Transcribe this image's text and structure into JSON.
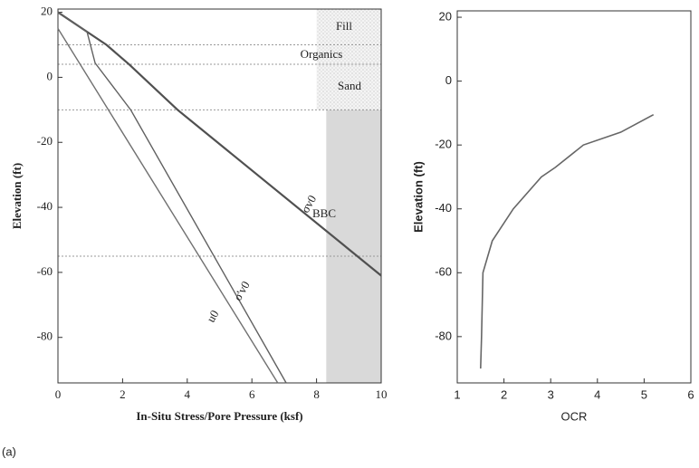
{
  "chart_data": [
    {
      "type": "line",
      "xlabel": "In-Situ Stress/Pore Pressure (ksf)",
      "ylabel": "Elevation (ft)",
      "xlim": [
        0,
        10
      ],
      "ylim": [
        -94,
        21
      ],
      "xticks": [
        0,
        2,
        4,
        6,
        8,
        10
      ],
      "yticks": [
        20,
        0,
        -20,
        -40,
        -60,
        -80
      ],
      "series": [
        {
          "name": "σv0",
          "color": "#505050",
          "x": [
            0,
            0.9,
            1.5,
            2.2,
            3.7,
            10
          ],
          "values": [
            20,
            14,
            10,
            4,
            -10,
            -61
          ]
        },
        {
          "name": "σ'v0",
          "color": "#606060",
          "x": [
            0,
            0.9,
            1.15,
            2.25,
            7.06
          ],
          "values": [
            20,
            14,
            4.4,
            -10,
            -94
          ]
        },
        {
          "name": "u0",
          "color": "#707070",
          "x": [
            0,
            6.8
          ],
          "values": [
            15,
            -94
          ]
        }
      ],
      "layer_labels": [
        "Fill",
        "Organics",
        "Sand",
        "BBC"
      ],
      "layer_boundaries": [
        10,
        4,
        -10,
        -55
      ],
      "shaded_regions": [
        {
          "xlim": [
            8.3,
            10
          ],
          "ylim": [
            -94,
            -10
          ]
        }
      ],
      "hatched_regions": [
        {
          "xlim": [
            8,
            10
          ],
          "ylim": [
            -10,
            21
          ]
        }
      ]
    },
    {
      "type": "line",
      "xlabel": "OCR",
      "ylabel": "Elevation (ft)",
      "xlim": [
        1,
        6
      ],
      "ylim": [
        -94.5,
        22
      ],
      "xticks": [
        1,
        2,
        3,
        4,
        5,
        6
      ],
      "yticks": [
        20,
        0,
        -20,
        -40,
        -60,
        -80
      ],
      "series": [
        {
          "name": null,
          "color": "#666666",
          "x": [
            1.5,
            1.52,
            1.55,
            1.75,
            2.2,
            2.8,
            3.1,
            3.7,
            4.5,
            5.2
          ],
          "values": [
            -90,
            -80,
            -60,
            -50,
            -40,
            -30,
            -27,
            -20,
            -16,
            -10.5
          ]
        }
      ]
    }
  ],
  "caption": "(a)"
}
